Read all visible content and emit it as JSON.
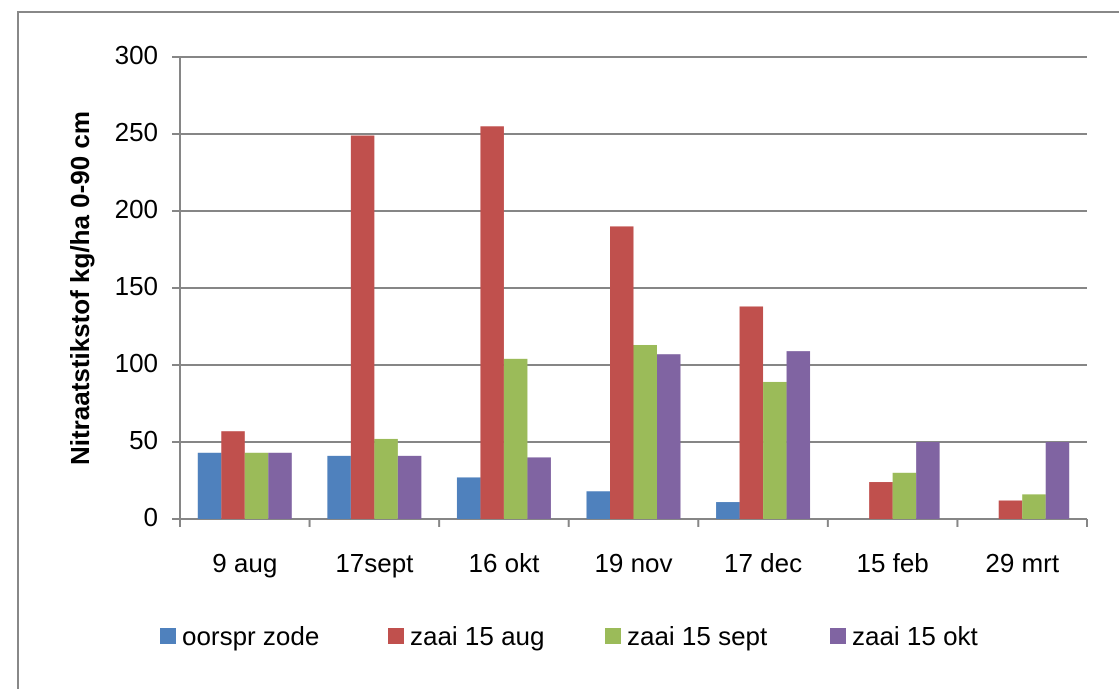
{
  "chart_data": {
    "type": "bar",
    "y_label": "Nitraatstikstof kg/ha 0-90 cm",
    "categories": [
      "9 aug",
      "17sept",
      "16 okt",
      "19 nov",
      "17 dec",
      "15 feb",
      "29 mrt"
    ],
    "series": [
      {
        "name": "oorspr zode",
        "color": "#4f81bd",
        "values": [
          43,
          41,
          27,
          18,
          11,
          null,
          null
        ]
      },
      {
        "name": "zaai 15 aug",
        "color": "#c0504d",
        "values": [
          57,
          249,
          255,
          190,
          138,
          24,
          12
        ]
      },
      {
        "name": "zaai 15 sept",
        "color": "#9bbb59",
        "values": [
          43,
          52,
          104,
          113,
          89,
          30,
          16
        ]
      },
      {
        "name": "zaai 15 okt",
        "color": "#8064a2",
        "values": [
          43,
          41,
          40,
          107,
          109,
          50,
          50
        ]
      }
    ],
    "ylim": [
      0,
      300
    ],
    "yticks": [
      0,
      50,
      100,
      150,
      200,
      250,
      300
    ],
    "grid": true,
    "legend": "bottom"
  }
}
